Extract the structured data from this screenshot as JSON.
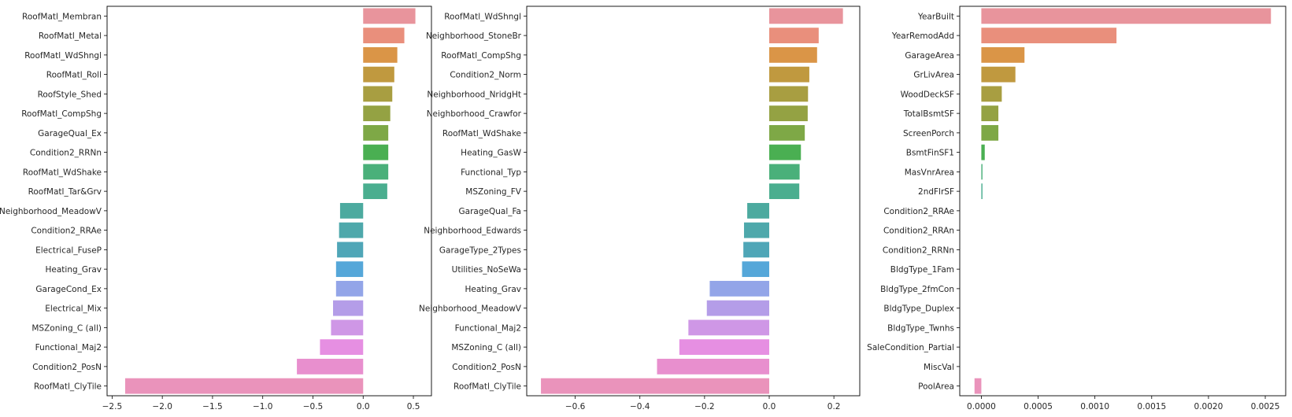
{
  "colors": [
    "#e8949c",
    "#e98f7c",
    "#da9547",
    "#c0993f",
    "#a89e41",
    "#94a243",
    "#7ea846",
    "#4aaf52",
    "#4ab07a",
    "#4aae8f",
    "#4caa9f",
    "#4ea8ab",
    "#4fa6b7",
    "#55a7d9",
    "#93a5e8",
    "#b49de8",
    "#cf97e6",
    "#e68fe2",
    "#e88fce",
    "#ea93bb"
  ],
  "chart_data": [
    {
      "type": "bar",
      "orientation": "horizontal",
      "categories": [
        "RoofMatl_Membran",
        "RoofMatl_Metal",
        "RoofMatl_WdShngl",
        "RoofMatl_Roll",
        "RoofStyle_Shed",
        "RoofMatl_CompShg",
        "GarageQual_Ex",
        "Condition2_RRNn",
        "RoofMatl_WdShake",
        "RoofMatl_Tar&Grv",
        "Neighborhood_MeadowV",
        "Condition2_RRAe",
        "Electrical_FuseP",
        "Heating_Grav",
        "GarageCond_Ex",
        "Electrical_Mix",
        "MSZoning_C (all)",
        "Functional_Maj2",
        "Condition2_PosN",
        "RoofMatl_ClyTile"
      ],
      "values": [
        0.52,
        0.41,
        0.34,
        0.31,
        0.29,
        0.27,
        0.25,
        0.25,
        0.25,
        0.24,
        -0.23,
        -0.24,
        -0.26,
        -0.27,
        -0.27,
        -0.3,
        -0.32,
        -0.43,
        -0.66,
        -2.37
      ],
      "xlim": [
        -2.55,
        0.68
      ],
      "xticks": [
        -2.5,
        -2.0,
        -1.5,
        -1.0,
        -0.5,
        0.0,
        0.5
      ],
      "xtick_labels": [
        "−2.5",
        "−2.0",
        "−1.5",
        "−1.0",
        "−0.5",
        "0.0",
        "0.5"
      ]
    },
    {
      "type": "bar",
      "orientation": "horizontal",
      "categories": [
        "RoofMatl_WdShngl",
        "Neighborhood_StoneBr",
        "RoofMatl_CompShg",
        "Condition2_Norm",
        "Neighborhood_NridgHt",
        "Neighborhood_Crawfor",
        "RoofMatl_WdShake",
        "Heating_GasW",
        "Functional_Typ",
        "MSZoning_FV",
        "GarageQual_Fa",
        "Neighborhood_Edwards",
        "GarageType_2Types",
        "Utilities_NoSeWa",
        "Heating_Grav",
        "Neighborhood_MeadowV",
        "Functional_Maj2",
        "MSZoning_C (all)",
        "Condition2_PosN",
        "RoofMatl_ClyTile"
      ],
      "values": [
        0.228,
        0.153,
        0.148,
        0.124,
        0.12,
        0.119,
        0.11,
        0.098,
        0.094,
        0.093,
        -0.068,
        -0.078,
        -0.08,
        -0.084,
        -0.184,
        -0.193,
        -0.25,
        -0.278,
        -0.347,
        -0.706
      ],
      "xlim": [
        -0.75,
        0.28
      ],
      "xticks": [
        -0.6,
        -0.4,
        -0.2,
        0.0,
        0.2
      ],
      "xtick_labels": [
        "−0.6",
        "−0.4",
        "−0.2",
        "0.0",
        "0.2"
      ]
    },
    {
      "type": "bar",
      "orientation": "horizontal",
      "categories": [
        "YearBuilt",
        "YearRemodAdd",
        "GarageArea",
        "GrLivArea",
        "WoodDeckSF",
        "TotalBsmtSF",
        "ScreenPorch",
        "BsmtFinSF1",
        "MasVnrArea",
        "2ndFlrSF",
        "Condition2_RRAe",
        "Condition2_RRAn",
        "Condition2_RRNn",
        "BldgType_1Fam",
        "BldgType_2fmCon",
        "BldgType_Duplex",
        "BldgType_Twnhs",
        "SaleCondition_Partial",
        "MiscVal",
        "PoolArea"
      ],
      "values": [
        0.00255,
        0.00119,
        0.00038,
        0.0003,
        0.00018,
        0.00015,
        0.00015,
        3e-05,
        1e-05,
        1e-05,
        0,
        0,
        0,
        0,
        0,
        0,
        0,
        0,
        0,
        -6e-05
      ],
      "xlim": [
        -0.00019,
        0.00268
      ],
      "xticks": [
        0.0,
        0.0005,
        0.001,
        0.0015,
        0.002,
        0.0025
      ],
      "xtick_labels": [
        "0.0000",
        "0.0005",
        "0.0010",
        "0.0015",
        "0.0020",
        "0.0025"
      ]
    }
  ]
}
